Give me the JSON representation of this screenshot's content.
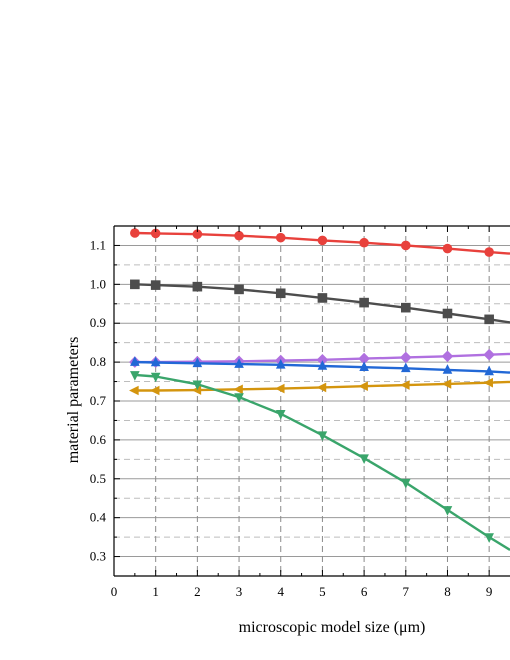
{
  "chart_data": {
    "type": "line",
    "title": "",
    "xlabel": "microscopic model size (μm)",
    "ylabel": "material parameters",
    "xlim": [
      0,
      9.5
    ],
    "ylim": [
      0.25,
      1.15
    ],
    "x_ticks": [
      "0",
      "1",
      "2",
      "3",
      "4",
      "5",
      "6",
      "7",
      "8",
      "9"
    ],
    "y_ticks": [
      "0.3",
      "0.4",
      "0.5",
      "0.6",
      "0.7",
      "0.8",
      "0.9",
      "1.0",
      "1.1"
    ],
    "grid": true,
    "legend": "none",
    "x": [
      0.5,
      1,
      2,
      3,
      4,
      5,
      6,
      7,
      8,
      9,
      9.5
    ],
    "series": [
      {
        "color": "#e8413c",
        "marker": "circle",
        "values": [
          1.132,
          1.131,
          1.129,
          1.125,
          1.12,
          1.113,
          1.107,
          1.1,
          1.092,
          1.083,
          1.079
        ]
      },
      {
        "color": "#4d4d4d",
        "marker": "square",
        "values": [
          1.0,
          0.998,
          0.994,
          0.987,
          0.977,
          0.965,
          0.953,
          0.94,
          0.925,
          0.91,
          0.902
        ]
      },
      {
        "color": "#b070e0",
        "marker": "diamond",
        "values": [
          0.8,
          0.8,
          0.801,
          0.802,
          0.804,
          0.806,
          0.809,
          0.812,
          0.815,
          0.819,
          0.821
        ]
      },
      {
        "color": "#2268d6",
        "marker": "triangle-up",
        "values": [
          0.8,
          0.799,
          0.797,
          0.795,
          0.793,
          0.79,
          0.787,
          0.784,
          0.78,
          0.776,
          0.773
        ]
      },
      {
        "color": "#d4950e",
        "marker": "triangle-left",
        "values": [
          0.727,
          0.727,
          0.728,
          0.73,
          0.732,
          0.735,
          0.738,
          0.741,
          0.744,
          0.747,
          0.749
        ]
      },
      {
        "color": "#3aa56b",
        "marker": "triangle-down",
        "values": [
          0.767,
          0.763,
          0.743,
          0.71,
          0.667,
          0.612,
          0.553,
          0.49,
          0.42,
          0.35,
          0.317
        ]
      }
    ]
  }
}
